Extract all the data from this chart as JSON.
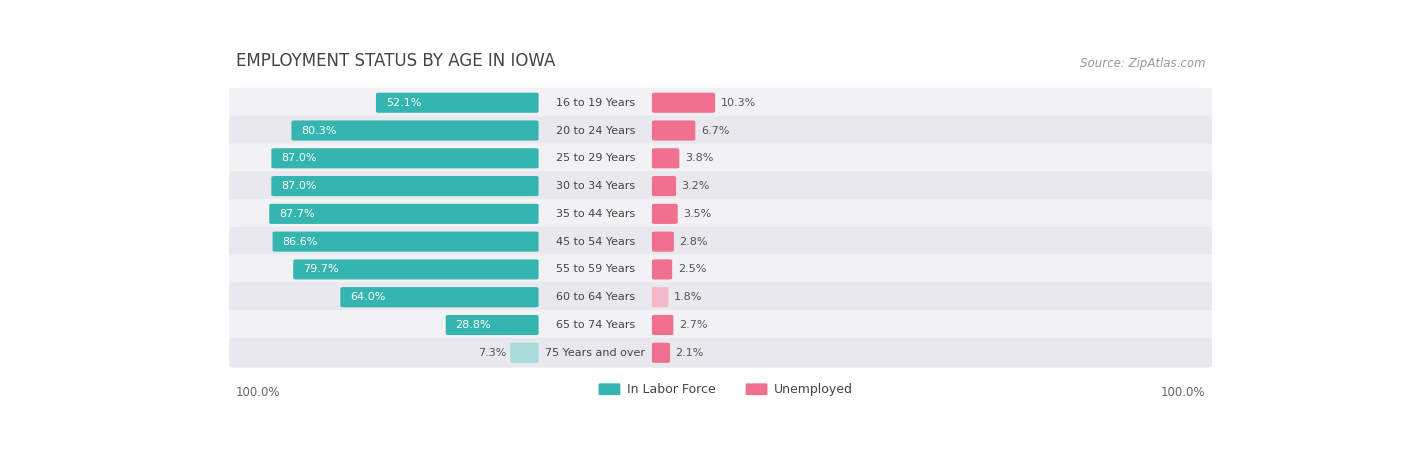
{
  "title": "EMPLOYMENT STATUS BY AGE IN IOWA",
  "source": "Source: ZipAtlas.com",
  "categories": [
    "16 to 19 Years",
    "20 to 24 Years",
    "25 to 29 Years",
    "30 to 34 Years",
    "35 to 44 Years",
    "45 to 54 Years",
    "55 to 59 Years",
    "60 to 64 Years",
    "65 to 74 Years",
    "75 Years and over"
  ],
  "labor_force": [
    52.1,
    80.3,
    87.0,
    87.0,
    87.7,
    86.6,
    79.7,
    64.0,
    28.8,
    7.3
  ],
  "unemployed": [
    10.3,
    6.7,
    3.8,
    3.2,
    3.5,
    2.8,
    2.5,
    1.8,
    2.7,
    2.1
  ],
  "labor_color": "#35b5b0",
  "labor_color_light": "#a8dbd9",
  "unemployed_color": "#f07090",
  "unemployed_color_light": "#f5b8c8",
  "row_bg_light": "#f2f2f5",
  "row_bg_dark": "#e8e8ee",
  "fig_bg": "#ffffff",
  "label_white": "#ffffff",
  "label_dark": "#555555",
  "axis_label_left": "100.0%",
  "axis_label_right": "100.0%",
  "max_scale": 100.0,
  "title_fontsize": 12,
  "source_fontsize": 8.5,
  "bar_label_fontsize": 8,
  "category_fontsize": 8,
  "legend_fontsize": 9
}
